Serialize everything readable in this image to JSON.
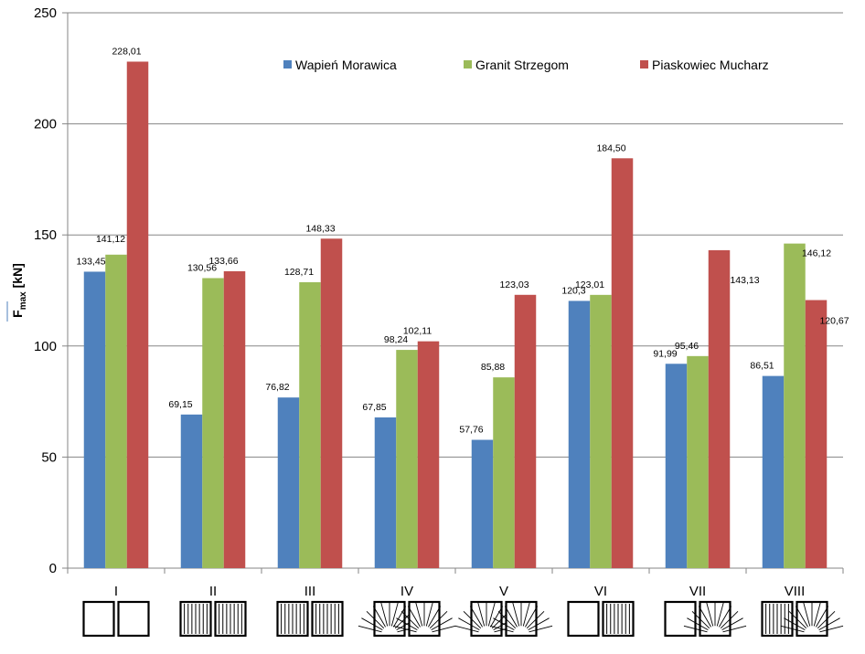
{
  "chart_data": {
    "type": "bar",
    "categories": [
      "I",
      "II",
      "III",
      "IV",
      "V",
      "VI",
      "VII",
      "VIII"
    ],
    "series": [
      {
        "name": "Wapień Morawica",
        "color": "#4f81bd",
        "values": [
          133.45,
          69.15,
          76.82,
          67.85,
          57.76,
          120.3,
          91.99,
          86.51
        ],
        "labels": [
          "133,45",
          "69,15",
          "76,82",
          "67,85",
          "57,76",
          "120,3",
          "91,99",
          "86,51"
        ]
      },
      {
        "name": "Granit Strzegom",
        "color": "#9bbb59",
        "values": [
          141.12,
          130.56,
          128.71,
          98.24,
          85.88,
          123.01,
          95.46,
          146.12
        ],
        "labels": [
          "141,12",
          "130,56",
          "128,71",
          "98,24",
          "85,88",
          "123,01",
          "95,46",
          "146,12"
        ]
      },
      {
        "name": "Piaskowiec Mucharz",
        "color": "#c0504d",
        "values": [
          228.01,
          133.66,
          148.33,
          102.11,
          123.03,
          184.5,
          143.13,
          120.67
        ],
        "labels": [
          "228,01",
          "133,66",
          "148,33",
          "102,11",
          "123,03",
          "184,50",
          "143,13",
          "120,67"
        ]
      }
    ],
    "ylabel": "F",
    "ylabel_sub": "max",
    "ylabel_unit": "[kN]",
    "ylim": [
      0,
      250
    ],
    "yticks": [
      0,
      50,
      100,
      150,
      200,
      250
    ],
    "ytick_labels": [
      "0",
      "50",
      "100",
      "150",
      "200",
      "250"
    ],
    "grid": true,
    "legend_position": "top-right",
    "pattern_icons": [
      [
        "empty",
        "empty"
      ],
      [
        "vertical",
        "vertical"
      ],
      [
        "vertical",
        "vertical"
      ],
      [
        "fan",
        "fan"
      ],
      [
        "fan",
        "fan"
      ],
      [
        "empty",
        "vertical"
      ],
      [
        "empty",
        "fan"
      ],
      [
        "vertical",
        "fan"
      ]
    ]
  }
}
